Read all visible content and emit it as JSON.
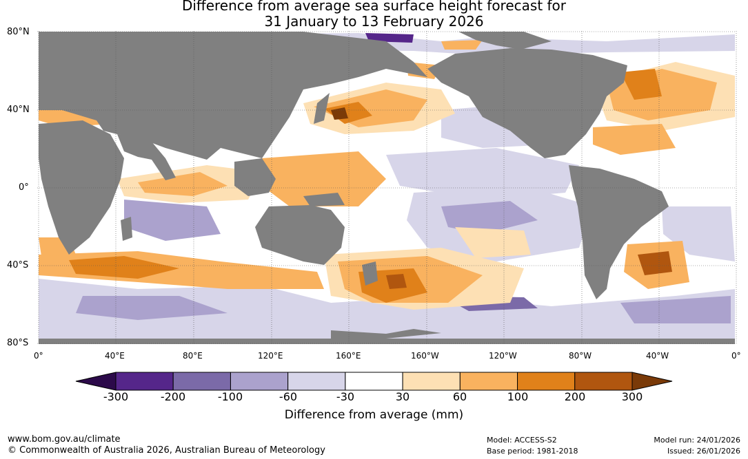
{
  "title": {
    "line1": "Difference from average sea surface height forecast for",
    "line2": "31 January to 13 February 2026"
  },
  "latitude_labels": [
    "80°N",
    "40°N",
    "0°",
    "40°S",
    "80°S"
  ],
  "longitude_labels": [
    "0°",
    "40°E",
    "80°E",
    "120°E",
    "160°E",
    "160°W",
    "120°W",
    "80°W",
    "40°W",
    "0°"
  ],
  "colorbar": {
    "ticks": [
      "-300",
      "-200",
      "-100",
      "-60",
      "-30",
      "30",
      "60",
      "100",
      "200",
      "300"
    ],
    "colors": [
      "#2c0a4a",
      "#55268a",
      "#7b6aa8",
      "#aba2cd",
      "#d7d5e9",
      "#ffffff",
      "#fde0b4",
      "#f9b25f",
      "#e0811a",
      "#b0560f",
      "#7a3a08"
    ],
    "label": "Difference from average (mm)"
  },
  "colors": {
    "land": "#808080",
    "ocean_base": "#ffffff"
  },
  "footer": {
    "website": "www.bom.gov.au/climate",
    "copyright": "© Commonwealth of Australia 2026, Australian Bureau of Meteorology",
    "model": "Model: ACCESS-S2",
    "base_period": "Base period: 1981-2018",
    "model_run": "Model run: 24/01/2026",
    "issued": "Issued: 26/01/2026"
  }
}
